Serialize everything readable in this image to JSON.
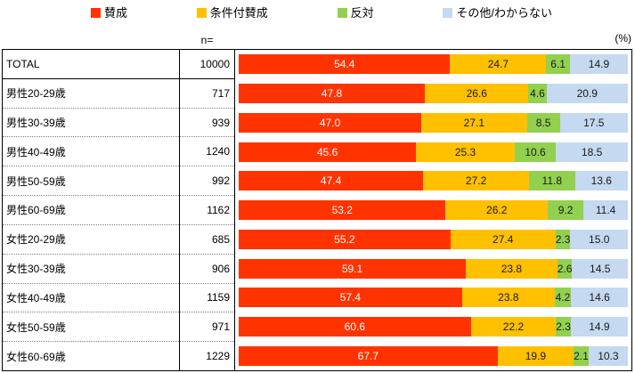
{
  "legend": {
    "items": [
      {
        "label": "賛成",
        "color": "#FF3300"
      },
      {
        "label": "条件付賛成",
        "color": "#FFC000"
      },
      {
        "label": "反対",
        "color": "#92D050"
      },
      {
        "label": "その他/わからない",
        "color": "#C5D9F1"
      }
    ]
  },
  "captions": {
    "n_label": "n=",
    "unit_label": "(%)"
  },
  "chart_data": {
    "type": "bar",
    "orientation": "horizontal-stacked",
    "xlim": [
      0,
      100
    ],
    "value_format": "one-decimal",
    "categories": [
      "TOTAL",
      "男性20-29歳",
      "男性30-39歳",
      "男性40-49歳",
      "男性50-59歳",
      "男性60-69歳",
      "女性20-29歳",
      "女性30-39歳",
      "女性40-49歳",
      "女性50-59歳",
      "女性60-69歳"
    ],
    "n_values": [
      10000,
      717,
      939,
      1240,
      992,
      1162,
      685,
      906,
      1159,
      971,
      1229
    ],
    "series": [
      {
        "name": "賛成",
        "color": "#FF3300",
        "text_color": "#FFFFFF",
        "values": [
          54.4,
          47.8,
          47.0,
          45.6,
          47.4,
          53.2,
          55.2,
          59.1,
          57.4,
          60.6,
          67.7
        ]
      },
      {
        "name": "条件付賛成",
        "color": "#FFC000",
        "text_color": "#1A1A1A",
        "values": [
          24.7,
          26.6,
          27.1,
          25.3,
          27.2,
          26.2,
          27.4,
          23.8,
          23.8,
          22.2,
          19.9
        ]
      },
      {
        "name": "反対",
        "color": "#92D050",
        "text_color": "#1A1A1A",
        "values": [
          6.1,
          4.6,
          8.5,
          10.6,
          11.8,
          9.2,
          2.3,
          2.6,
          4.2,
          2.3,
          2.1
        ]
      },
      {
        "name": "その他/わからない",
        "color": "#C5D9F1",
        "text_color": "#1A1A1A",
        "values": [
          14.9,
          20.9,
          17.5,
          18.5,
          13.6,
          11.4,
          15.0,
          14.5,
          14.6,
          14.9,
          10.3
        ]
      }
    ]
  }
}
